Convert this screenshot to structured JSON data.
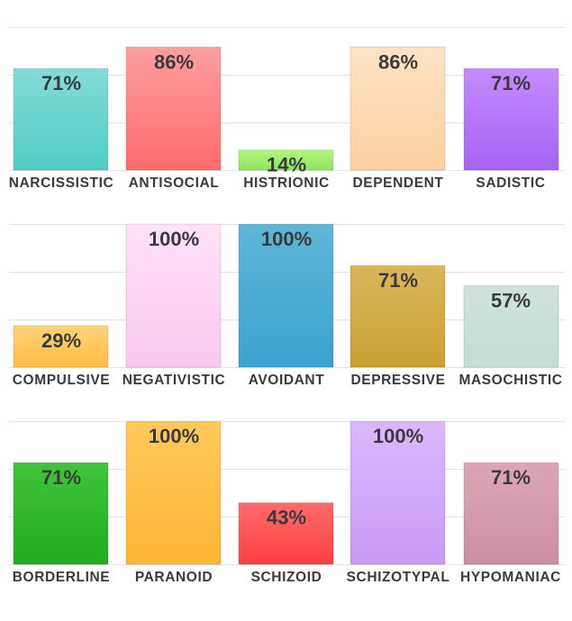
{
  "chart_data": {
    "type": "bar",
    "unit": "%",
    "ylim": [
      0,
      100
    ],
    "grid": true,
    "panels": [
      {
        "categories": [
          "NARCISSISTIC",
          "ANTISOCIAL",
          "HISTRIONIC",
          "DEPENDENT",
          "SADISTIC"
        ],
        "values": [
          71,
          86,
          14,
          86,
          71
        ],
        "labels": [
          "71%",
          "86%",
          "14%",
          "86%",
          "71%"
        ],
        "colors": [
          [
            "#85dcd6",
            "#4fcdc3"
          ],
          [
            "#ff9e9e",
            "#ff6b6b"
          ],
          [
            "#b5f57e",
            "#8ae65a"
          ],
          [
            "#ffe3c2",
            "#ffd09f"
          ],
          [
            "#c48bff",
            "#a663f5"
          ]
        ]
      },
      {
        "categories": [
          "COMPULSIVE",
          "NEGATIVISTIC",
          "AVOIDANT",
          "DEPRESSIVE",
          "MASOCHISTIC"
        ],
        "values": [
          29,
          100,
          100,
          71,
          57
        ],
        "labels": [
          "29%",
          "100%",
          "100%",
          "71%",
          "57%"
        ],
        "colors": [
          [
            "#ffd37a",
            "#ffbc42"
          ],
          [
            "#fde2f7",
            "#fac8ee"
          ],
          [
            "#5fb6d9",
            "#3aa2cf"
          ],
          [
            "#dbb65a",
            "#c9a030"
          ],
          [
            "#cfe3dc",
            "#c4ddd4"
          ]
        ]
      },
      {
        "categories": [
          "BORDERLINE",
          "PARANOID",
          "SCHIZOID",
          "SCHIZOTYPAL",
          "HYPOMANIAC"
        ],
        "values": [
          71,
          100,
          43,
          100,
          71
        ],
        "labels": [
          "71%",
          "100%",
          "43%",
          "100%",
          "71%"
        ],
        "colors": [
          [
            "#3fc43a",
            "#22ac1f"
          ],
          [
            "#ffc95a",
            "#ffb534"
          ],
          [
            "#ff6b6b",
            "#ff3f3f"
          ],
          [
            "#dab8ff",
            "#c99cf5"
          ],
          [
            "#dca6b6",
            "#cc8ea1"
          ]
        ]
      }
    ]
  }
}
